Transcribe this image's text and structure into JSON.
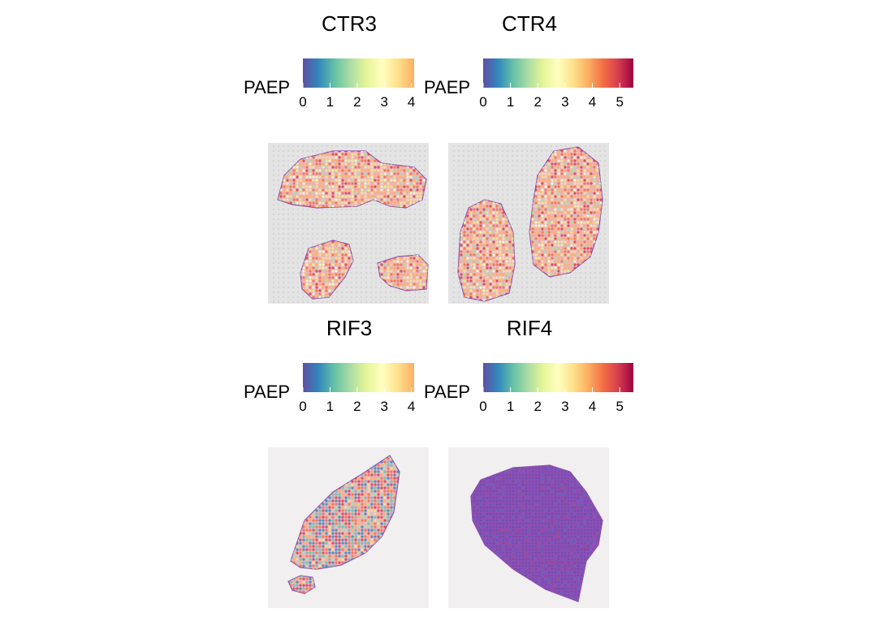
{
  "palette": {
    "spectral": [
      "#5E4FA2",
      "#3288BD",
      "#66C2A5",
      "#ABDDA4",
      "#E6F598",
      "#FFFFBF",
      "#FEE08B",
      "#FDAE61",
      "#F46D43",
      "#D53E4F",
      "#9E0142"
    ],
    "he_pink": "#E8B8C8",
    "he_purple": "#8A4FB5"
  },
  "chart_data": [
    {
      "type": "heatmap",
      "title": "CTR3",
      "legend": {
        "title": "PAEP",
        "min": 0,
        "max": 4.1,
        "ticks": [
          "0",
          "1",
          "2",
          "3",
          "4"
        ]
      },
      "background": "gray-grid",
      "expression_level": "high"
    },
    {
      "type": "heatmap",
      "title": "CTR4",
      "legend": {
        "title": "PAEP",
        "min": 0,
        "max": 5.5,
        "ticks": [
          "0",
          "1",
          "2",
          "3",
          "4",
          "5"
        ]
      },
      "background": "gray-grid",
      "expression_level": "high"
    },
    {
      "type": "heatmap",
      "title": "RIF3",
      "legend": {
        "title": "PAEP",
        "min": 0,
        "max": 4.1,
        "ticks": [
          "0",
          "1",
          "2",
          "3",
          "4"
        ]
      },
      "background": "white",
      "expression_level": "mixed"
    },
    {
      "type": "heatmap",
      "title": "RIF4",
      "legend": {
        "title": "PAEP",
        "min": 0,
        "max": 5.5,
        "ticks": [
          "0",
          "1",
          "2",
          "3",
          "4",
          "5"
        ]
      },
      "background": "white",
      "expression_level": "low"
    }
  ]
}
